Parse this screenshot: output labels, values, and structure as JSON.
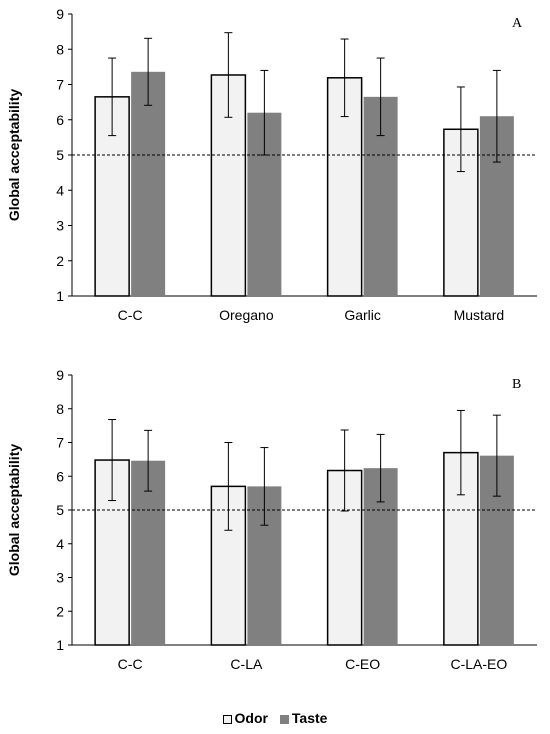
{
  "chart_data": [
    {
      "type": "bar",
      "panel_label": "A",
      "ylabel": "Global acceptability",
      "ylim": [
        1,
        9
      ],
      "yticks": [
        1,
        2,
        3,
        4,
        5,
        6,
        7,
        8,
        9
      ],
      "reference_line": 5,
      "categories": [
        "C-C",
        "Oregano",
        "Garlic",
        "Mustard"
      ],
      "series": [
        {
          "name": "Odor",
          "values": [
            6.65,
            7.27,
            7.19,
            5.73
          ],
          "errors": [
            1.1,
            1.2,
            1.1,
            1.2
          ]
        },
        {
          "name": "Taste",
          "values": [
            7.36,
            6.2,
            6.65,
            6.1
          ],
          "errors": [
            0.95,
            1.2,
            1.1,
            1.3
          ]
        }
      ]
    },
    {
      "type": "bar",
      "panel_label": "B",
      "ylabel": "Global acceptability",
      "ylim": [
        1,
        9
      ],
      "yticks": [
        1,
        2,
        3,
        4,
        5,
        6,
        7,
        8,
        9
      ],
      "reference_line": 5,
      "categories": [
        "C-C",
        "C-LA",
        "C-EO",
        "C-LA-EO"
      ],
      "series": [
        {
          "name": "Odor",
          "values": [
            6.48,
            5.7,
            6.17,
            6.7
          ],
          "errors": [
            1.2,
            1.3,
            1.2,
            1.25
          ]
        },
        {
          "name": "Taste",
          "values": [
            6.46,
            5.7,
            6.24,
            6.61
          ],
          "errors": [
            0.9,
            1.15,
            1.0,
            1.2
          ]
        }
      ]
    }
  ],
  "legend": [
    {
      "label": "Odor",
      "fill": "#f2f2f2",
      "stroke": "#000000"
    },
    {
      "label": "Taste",
      "fill": "#808080",
      "stroke": "#808080"
    }
  ]
}
